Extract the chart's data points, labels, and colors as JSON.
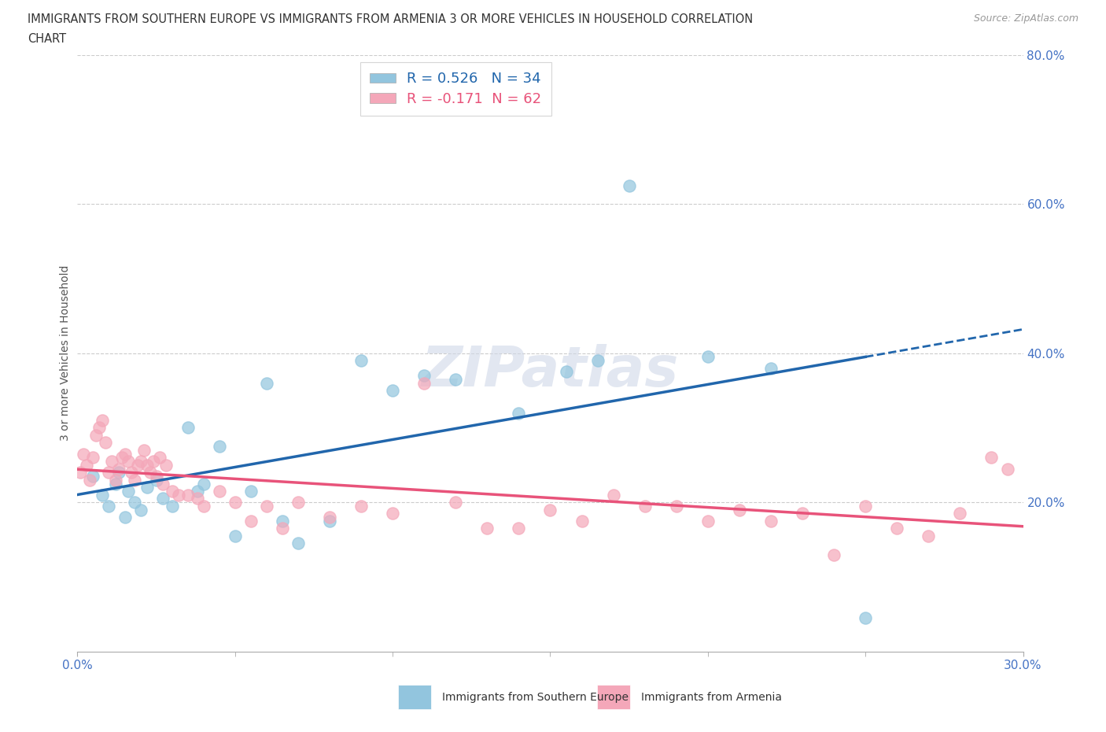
{
  "title_line1": "IMMIGRANTS FROM SOUTHERN EUROPE VS IMMIGRANTS FROM ARMENIA 3 OR MORE VEHICLES IN HOUSEHOLD CORRELATION",
  "title_line2": "CHART",
  "source_text": "Source: ZipAtlas.com",
  "ylabel": "3 or more Vehicles in Household",
  "xlim": [
    0.0,
    0.3
  ],
  "ylim": [
    0.0,
    0.8
  ],
  "ytick_positions": [
    0.2,
    0.4,
    0.6,
    0.8
  ],
  "watermark": "ZIPatlas",
  "blue_R": 0.526,
  "blue_N": 34,
  "pink_R": -0.171,
  "pink_N": 62,
  "blue_color": "#92c5de",
  "pink_color": "#f4a7b9",
  "blue_line_color": "#2166ac",
  "pink_line_color": "#e8537a",
  "blue_scatter_x": [
    0.005,
    0.008,
    0.01,
    0.012,
    0.013,
    0.015,
    0.016,
    0.018,
    0.02,
    0.022,
    0.025,
    0.027,
    0.03,
    0.035,
    0.038,
    0.04,
    0.045,
    0.05,
    0.055,
    0.06,
    0.065,
    0.07,
    0.08,
    0.09,
    0.1,
    0.11,
    0.12,
    0.14,
    0.155,
    0.165,
    0.175,
    0.2,
    0.22,
    0.25
  ],
  "blue_scatter_y": [
    0.235,
    0.21,
    0.195,
    0.225,
    0.24,
    0.18,
    0.215,
    0.2,
    0.19,
    0.22,
    0.23,
    0.205,
    0.195,
    0.3,
    0.215,
    0.225,
    0.275,
    0.155,
    0.215,
    0.36,
    0.175,
    0.145,
    0.175,
    0.39,
    0.35,
    0.37,
    0.365,
    0.32,
    0.375,
    0.39,
    0.625,
    0.395,
    0.38,
    0.045
  ],
  "pink_scatter_x": [
    0.001,
    0.002,
    0.003,
    0.004,
    0.005,
    0.006,
    0.007,
    0.008,
    0.009,
    0.01,
    0.011,
    0.012,
    0.013,
    0.014,
    0.015,
    0.016,
    0.017,
    0.018,
    0.019,
    0.02,
    0.021,
    0.022,
    0.023,
    0.024,
    0.025,
    0.026,
    0.027,
    0.028,
    0.03,
    0.032,
    0.035,
    0.038,
    0.04,
    0.045,
    0.05,
    0.055,
    0.06,
    0.065,
    0.07,
    0.08,
    0.09,
    0.1,
    0.11,
    0.12,
    0.13,
    0.14,
    0.15,
    0.16,
    0.17,
    0.18,
    0.19,
    0.2,
    0.21,
    0.22,
    0.23,
    0.24,
    0.25,
    0.26,
    0.27,
    0.28,
    0.29,
    0.295
  ],
  "pink_scatter_y": [
    0.24,
    0.265,
    0.25,
    0.23,
    0.26,
    0.29,
    0.3,
    0.31,
    0.28,
    0.24,
    0.255,
    0.23,
    0.245,
    0.26,
    0.265,
    0.255,
    0.24,
    0.23,
    0.25,
    0.255,
    0.27,
    0.25,
    0.24,
    0.255,
    0.235,
    0.26,
    0.225,
    0.25,
    0.215,
    0.21,
    0.21,
    0.205,
    0.195,
    0.215,
    0.2,
    0.175,
    0.195,
    0.165,
    0.2,
    0.18,
    0.195,
    0.185,
    0.36,
    0.2,
    0.165,
    0.165,
    0.19,
    0.175,
    0.21,
    0.195,
    0.195,
    0.175,
    0.19,
    0.175,
    0.185,
    0.13,
    0.195,
    0.165,
    0.155,
    0.185,
    0.26,
    0.245
  ],
  "legend_label_blue": "Immigrants from Southern Europe",
  "legend_label_pink": "Immigrants from Armenia",
  "background_color": "#ffffff",
  "grid_color": "#cccccc"
}
